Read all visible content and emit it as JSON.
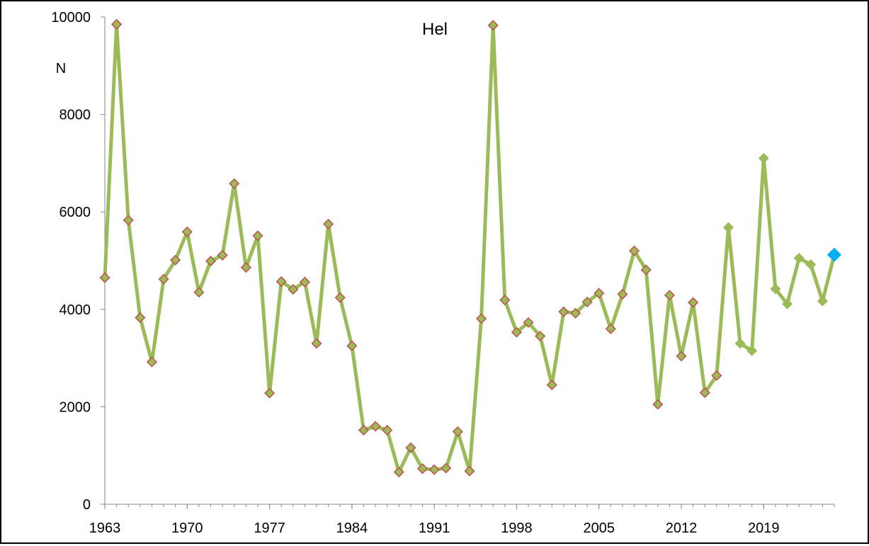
{
  "chart_data": {
    "type": "line",
    "title": "Hel",
    "ylabel": "N",
    "xlabel": "",
    "xlim": [
      1963,
      2025
    ],
    "ylim": [
      0,
      10000
    ],
    "xticks": [
      1963,
      1970,
      1977,
      1984,
      1991,
      1998,
      2005,
      2012,
      2019
    ],
    "yticks": [
      0,
      2000,
      4000,
      6000,
      8000,
      10000
    ],
    "grid": false,
    "colors": {
      "line": "#9bbb59",
      "marker_fill": "#9bbb59",
      "marker_edge_early": "#c0504d",
      "marker_edge_late": "#9bbb59",
      "last_point": "#00b0f0",
      "axis": "#868686"
    },
    "series": [
      {
        "x": [
          1963,
          1964,
          1965,
          1966,
          1967,
          1968,
          1969,
          1970,
          1971,
          1972,
          1973,
          1974,
          1975,
          1976,
          1977,
          1978,
          1979,
          1980,
          1981,
          1982,
          1983,
          1984,
          1985,
          1986,
          1987,
          1988,
          1989,
          1990,
          1991,
          1992,
          1993,
          1994,
          1995,
          1996,
          1997,
          1998,
          1999,
          2000,
          2001,
          2002,
          2003,
          2004,
          2005,
          2006,
          2007,
          2008,
          2009,
          2010,
          2011,
          2012,
          2013,
          2014,
          2015,
          2016,
          2017,
          2018,
          2019,
          2020,
          2021,
          2022,
          2023,
          2024,
          2025
        ],
        "values": [
          4650,
          9850,
          5830,
          3830,
          2920,
          4620,
          5010,
          5590,
          4350,
          4990,
          5110,
          6580,
          4860,
          5510,
          2280,
          4570,
          4410,
          4560,
          3300,
          5750,
          4240,
          3250,
          1520,
          1600,
          1520,
          660,
          1160,
          730,
          710,
          740,
          1490,
          680,
          3810,
          9830,
          4190,
          3530,
          3730,
          3450,
          2450,
          3950,
          3920,
          4150,
          4330,
          3600,
          4310,
          5200,
          4810,
          2050,
          4290,
          3040,
          4140,
          2290,
          2640,
          5680,
          3300,
          3150,
          7100,
          4420,
          4110,
          5050,
          4920,
          4170,
          5120
        ]
      }
    ]
  }
}
